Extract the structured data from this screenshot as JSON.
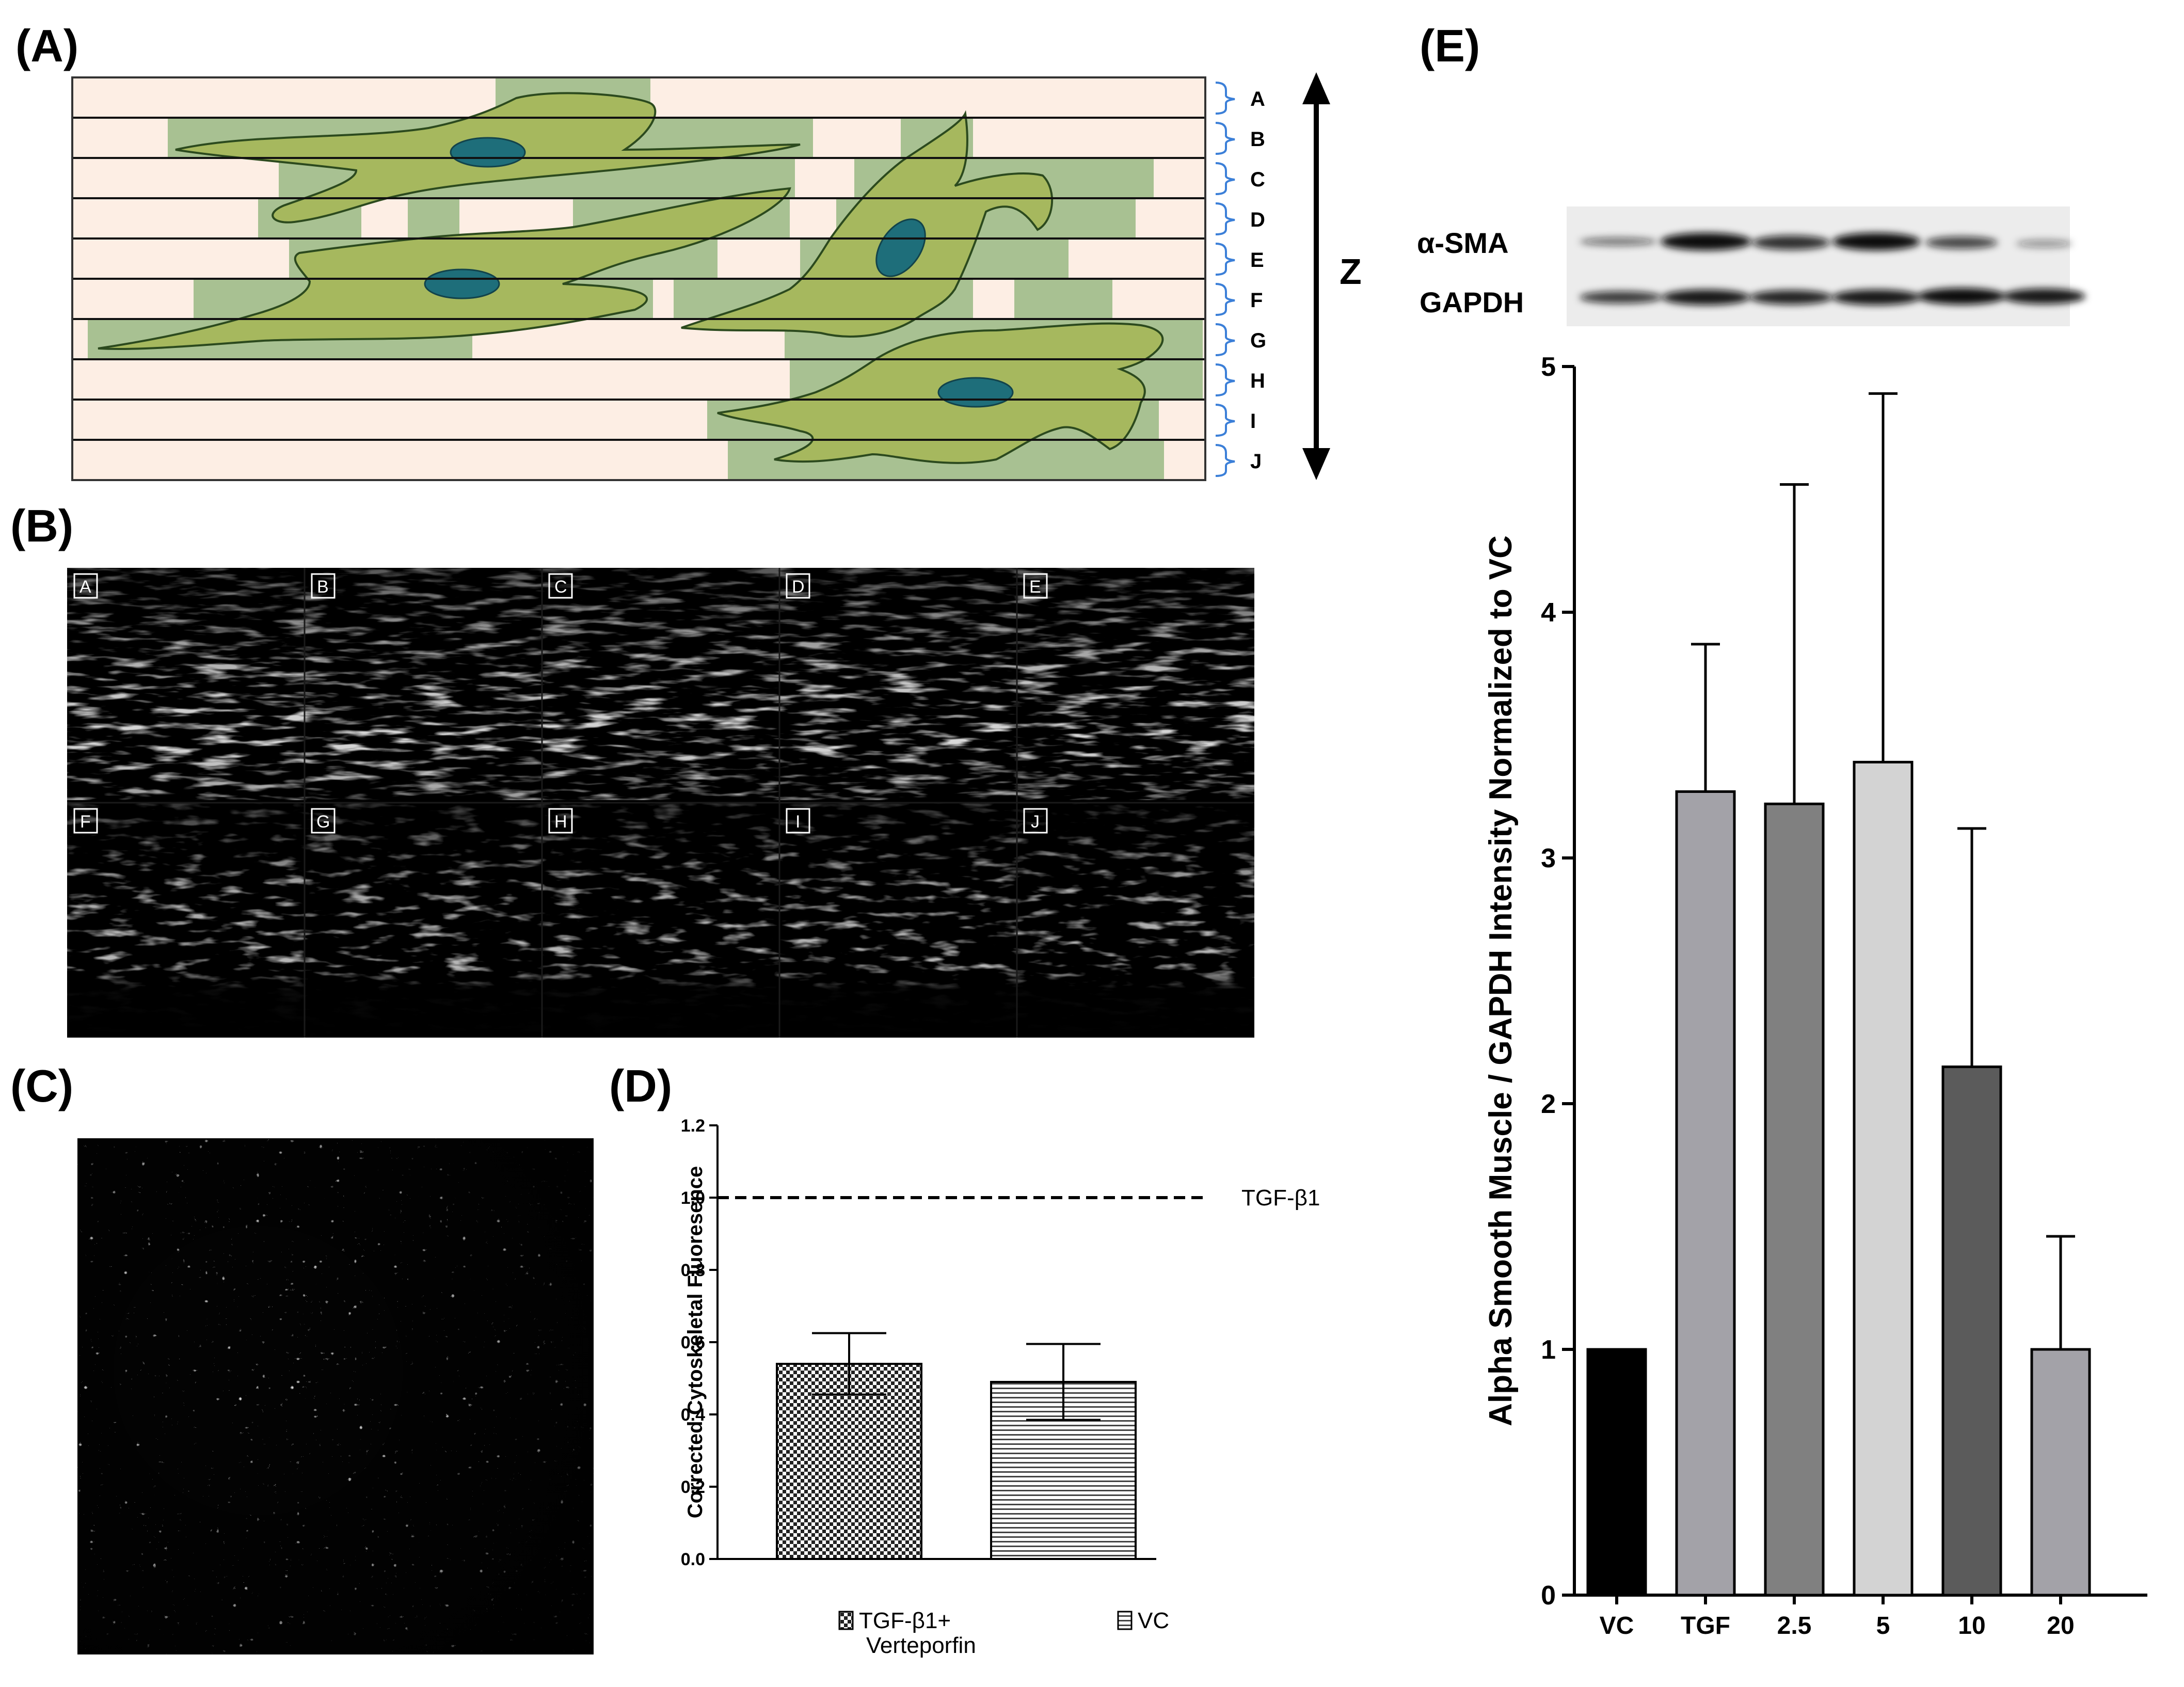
{
  "figure": {
    "panel_labels": {
      "a": "(A)",
      "b": "(B)",
      "c": "(C)",
      "d": "(D)",
      "e": "(E)"
    }
  },
  "panel_a": {
    "slice_letters": [
      "A",
      "B",
      "C",
      "D",
      "E",
      "F",
      "G",
      "H",
      "I",
      "J"
    ],
    "axis_label": "Z",
    "colors": {
      "slice_bg": "#fdeee4",
      "overlap": "#a8c192",
      "cell": "#a6b85e",
      "cell_outline": "#2c4a1e",
      "nucleus": "#1e6e7a",
      "bracket": "#3b7fd8"
    }
  },
  "panel_b": {
    "tile_labels": [
      "A",
      "B",
      "C",
      "D",
      "E",
      "F",
      "G",
      "H",
      "I",
      "J"
    ]
  },
  "panel_c": {},
  "chart_d": {
    "type": "bar",
    "ylabel": "Corrected Cytoskeletal Fluoresence",
    "y_ticks": [
      "0.0",
      "0.2",
      "0.4",
      "0.6",
      "0.8",
      "1.0",
      "1.2"
    ],
    "ylim": [
      0,
      1.2
    ],
    "reference_line": {
      "value": 1.0,
      "label": "TGF-β1",
      "style": "dashed"
    },
    "categories": [
      "TGF-β1+ Verteporfin",
      "VC"
    ],
    "category_line1": "TGF-β1+",
    "category_line2": "Verteporfin",
    "category_vc": "VC",
    "values": [
      0.54,
      0.49
    ],
    "errors": [
      0.085,
      0.105
    ],
    "patterns": [
      "checker",
      "horizontal-lines"
    ],
    "grid": false
  },
  "chart_e": {
    "type": "bar",
    "blot_labels": [
      "α-SMA",
      "GAPDH"
    ],
    "ylabel": "Alpha Smooth Muscle / GAPDH Intensity Normalized to VC",
    "y_ticks": [
      "0",
      "1",
      "2",
      "3",
      "4",
      "5"
    ],
    "ylim": [
      0,
      5
    ],
    "categories": [
      "VC",
      "TGF",
      "2.5",
      "5",
      "10",
      "20"
    ],
    "values": [
      1.0,
      3.27,
      3.22,
      3.39,
      2.15,
      1.0
    ],
    "errors": [
      0,
      0.6,
      1.3,
      1.5,
      0.97,
      0.46
    ],
    "colors": [
      "#000000",
      "#a3a2a8",
      "#808080",
      "#d3d3d3",
      "#5b5b5b",
      "#a3a2a8"
    ],
    "grid": false
  }
}
